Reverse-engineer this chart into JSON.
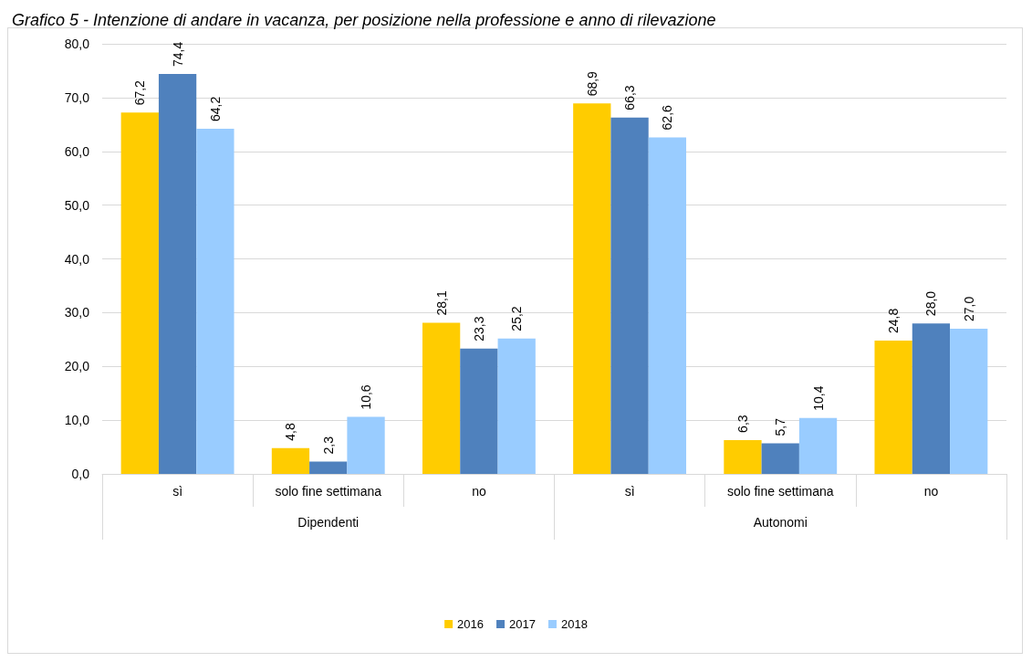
{
  "chart_data": {
    "type": "bar",
    "title": "Grafico 5 - Intenzione di andare in vacanza, per posizione nella professione e anno di rilevazione",
    "categories": [
      "sì",
      "solo fine settimana",
      "no",
      "sì",
      "solo fine settimana",
      "no"
    ],
    "annotations": [
      "Dipendenti",
      "Autonomi"
    ],
    "series": [
      {
        "name": "2016",
        "color": "#ffcc00",
        "values": [
          67.2,
          4.8,
          28.1,
          68.9,
          6.3,
          24.8
        ],
        "value_labels": [
          "67,2",
          "4,8",
          "28,1",
          "68,9",
          "6,3",
          "24,8"
        ]
      },
      {
        "name": "2017",
        "color": "#4f81bd",
        "values": [
          74.4,
          2.3,
          23.3,
          66.3,
          5.7,
          28.0
        ],
        "value_labels": [
          "74,4",
          "2,3",
          "23,3",
          "66,3",
          "5,7",
          "28,0"
        ]
      },
      {
        "name": "2018",
        "color": "#99ccff",
        "values": [
          64.2,
          10.6,
          25.2,
          62.6,
          10.4,
          27.0
        ],
        "value_labels": [
          "64,2",
          "10,6",
          "25,2",
          "62,6",
          "10,4",
          "27,0"
        ]
      }
    ],
    "ylim": [
      0,
      80
    ],
    "yticks": [
      {
        "value": 0,
        "label": "0,0"
      },
      {
        "value": 10,
        "label": "10,0"
      },
      {
        "value": 20,
        "label": "20,0"
      },
      {
        "value": 30,
        "label": "30,0"
      },
      {
        "value": 40,
        "label": "40,0"
      },
      {
        "value": 50,
        "label": "50,0"
      },
      {
        "value": 60,
        "label": "60,0"
      },
      {
        "value": 70,
        "label": "70,0"
      },
      {
        "value": 80,
        "label": "80,0"
      }
    ],
    "grid": "y",
    "legend": "bottom"
  }
}
